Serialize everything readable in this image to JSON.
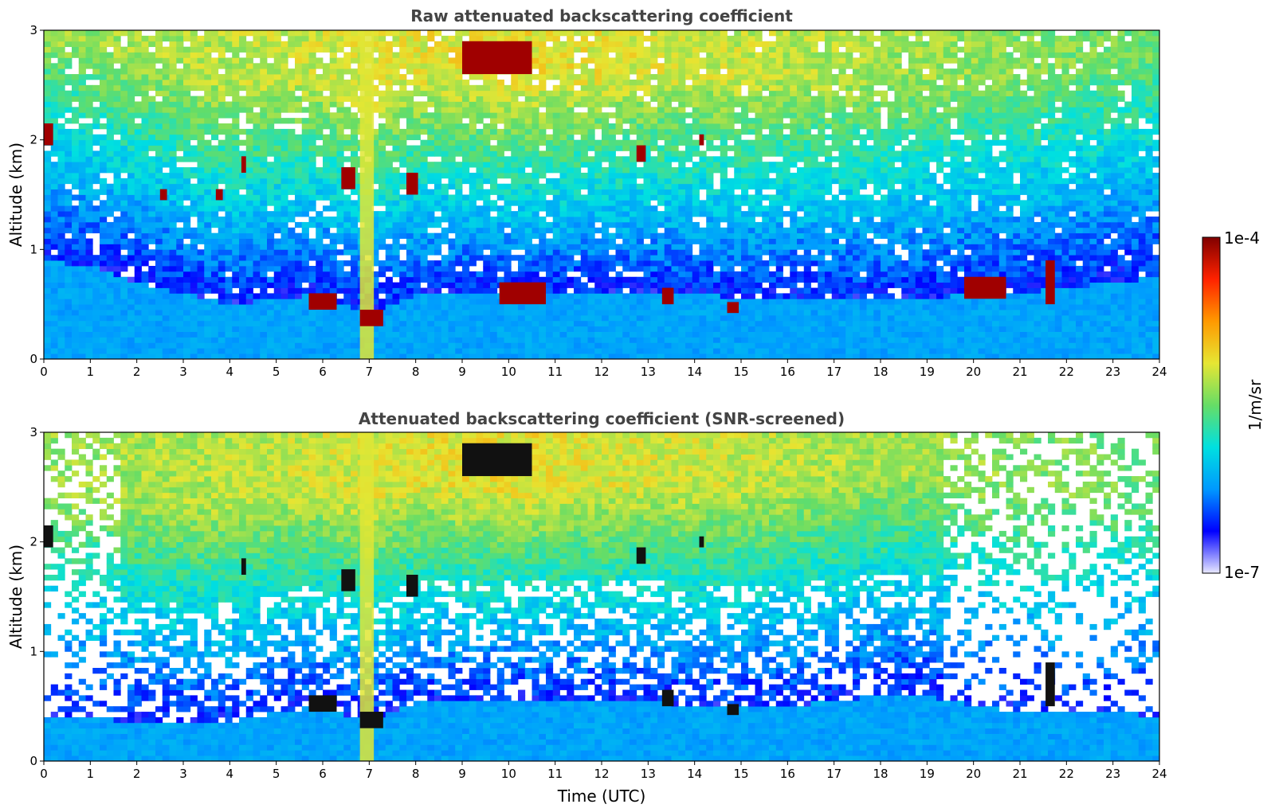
{
  "chart_data": [
    {
      "type": "heatmap",
      "title": "Raw attenuated backscattering coefficient",
      "xlabel": "",
      "ylabel": "Altitude (km)",
      "xlim": [
        0,
        24
      ],
      "ylim": [
        0,
        3
      ],
      "xticks": [
        "0",
        "1",
        "2",
        "3",
        "4",
        "5",
        "6",
        "7",
        "8",
        "9",
        "10",
        "11",
        "12",
        "13",
        "14",
        "15",
        "16",
        "17",
        "18",
        "19",
        "20",
        "21",
        "22",
        "23",
        "24"
      ],
      "yticks": [
        "0",
        "1",
        "2",
        "3"
      ],
      "grid": false,
      "colorscale": "jet (log)",
      "features": {
        "boundary_layer_top_km": [
          0.9,
          0.85,
          0.7,
          0.6,
          0.5,
          0.55,
          0.6,
          0.4,
          0.6,
          0.6,
          0.6,
          0.6,
          0.6,
          0.6,
          0.6,
          0.55,
          0.55,
          0.55,
          0.55,
          0.55,
          0.6,
          0.6,
          0.65,
          0.7,
          0.75
        ],
        "cloud_patches": [
          {
            "t_start": 0.0,
            "t_end": 0.2,
            "alt_low": 1.95,
            "alt_high": 2.15
          },
          {
            "t_start": 2.5,
            "t_end": 2.65,
            "alt_low": 1.45,
            "alt_high": 1.55
          },
          {
            "t_start": 3.7,
            "t_end": 3.85,
            "alt_low": 1.45,
            "alt_high": 1.55
          },
          {
            "t_start": 4.25,
            "t_end": 4.35,
            "alt_low": 1.7,
            "alt_high": 1.85
          },
          {
            "t_start": 5.7,
            "t_end": 6.3,
            "alt_low": 0.45,
            "alt_high": 0.6
          },
          {
            "t_start": 6.4,
            "t_end": 6.7,
            "alt_low": 1.55,
            "alt_high": 1.75
          },
          {
            "t_start": 6.8,
            "t_end": 7.3,
            "alt_low": 0.3,
            "alt_high": 0.45
          },
          {
            "t_start": 7.8,
            "t_end": 8.05,
            "alt_low": 1.5,
            "alt_high": 1.7
          },
          {
            "t_start": 9.0,
            "t_end": 10.5,
            "alt_low": 2.6,
            "alt_high": 2.9
          },
          {
            "t_start": 9.8,
            "t_end": 10.8,
            "alt_low": 0.5,
            "alt_high": 0.7
          },
          {
            "t_start": 12.75,
            "t_end": 12.95,
            "alt_low": 1.8,
            "alt_high": 1.95
          },
          {
            "t_start": 13.3,
            "t_end": 13.55,
            "alt_low": 0.5,
            "alt_high": 0.65
          },
          {
            "t_start": 14.1,
            "t_end": 14.2,
            "alt_low": 1.95,
            "alt_high": 2.05
          },
          {
            "t_start": 14.7,
            "t_end": 14.95,
            "alt_low": 0.42,
            "alt_high": 0.52
          },
          {
            "t_start": 19.8,
            "t_end": 20.7,
            "alt_low": 0.55,
            "alt_high": 0.75
          },
          {
            "t_start": 21.55,
            "t_end": 21.75,
            "alt_low": 0.5,
            "alt_high": 0.9
          }
        ],
        "dense_aerosol_column": {
          "t_start": 6.8,
          "t_end": 7.1,
          "alt_low": 0.0,
          "alt_high": 3.0
        }
      }
    },
    {
      "type": "heatmap",
      "title": "Attenuated backscattering coefficient (SNR-screened)",
      "xlabel": "Time (UTC)",
      "ylabel": "Altitude (km)",
      "xlim": [
        0,
        24
      ],
      "ylim": [
        0,
        3
      ],
      "xticks": [
        "0",
        "1",
        "2",
        "3",
        "4",
        "5",
        "6",
        "7",
        "8",
        "9",
        "10",
        "11",
        "12",
        "13",
        "14",
        "15",
        "16",
        "17",
        "18",
        "19",
        "20",
        "21",
        "22",
        "23",
        "24"
      ],
      "yticks": [
        "0",
        "1",
        "2",
        "3"
      ],
      "grid": false,
      "colorscale": "jet (log)",
      "features": {
        "screened_low_snr": true,
        "boundary_layer_top_km": [
          0.4,
          0.4,
          0.35,
          0.35,
          0.35,
          0.45,
          0.5,
          0.35,
          0.55,
          0.55,
          0.55,
          0.55,
          0.55,
          0.55,
          0.5,
          0.5,
          0.5,
          0.55,
          0.6,
          0.6,
          0.5,
          0.45,
          0.45,
          0.45,
          0.4
        ],
        "cloud_patches": [
          {
            "t_start": 0.0,
            "t_end": 0.2,
            "alt_low": 1.95,
            "alt_high": 2.15
          },
          {
            "t_start": 4.25,
            "t_end": 4.35,
            "alt_low": 1.7,
            "alt_high": 1.85
          },
          {
            "t_start": 5.7,
            "t_end": 6.3,
            "alt_low": 0.45,
            "alt_high": 0.6
          },
          {
            "t_start": 6.4,
            "t_end": 6.7,
            "alt_low": 1.55,
            "alt_high": 1.75
          },
          {
            "t_start": 6.8,
            "t_end": 7.3,
            "alt_low": 0.3,
            "alt_high": 0.45
          },
          {
            "t_start": 7.8,
            "t_end": 8.05,
            "alt_low": 1.5,
            "alt_high": 1.7
          },
          {
            "t_start": 9.0,
            "t_end": 10.5,
            "alt_low": 2.6,
            "alt_high": 2.9
          },
          {
            "t_start": 12.75,
            "t_end": 12.95,
            "alt_low": 1.8,
            "alt_high": 1.95
          },
          {
            "t_start": 13.3,
            "t_end": 13.55,
            "alt_low": 0.5,
            "alt_high": 0.65
          },
          {
            "t_start": 14.1,
            "t_end": 14.2,
            "alt_low": 1.95,
            "alt_high": 2.05
          },
          {
            "t_start": 14.7,
            "t_end": 14.95,
            "alt_low": 0.42,
            "alt_high": 0.52
          },
          {
            "t_start": 21.55,
            "t_end": 21.75,
            "alt_low": 0.5,
            "alt_high": 0.9
          }
        ],
        "dense_aerosol_column": {
          "t_start": 6.8,
          "t_end": 7.1,
          "alt_low": 0.0,
          "alt_high": 3.0
        }
      }
    }
  ],
  "colorbar": {
    "label": "1/m/sr",
    "max_label": "1e-4",
    "min_label": "1e-7",
    "scale": "log",
    "stops": [
      "#e8e8ff",
      "#0000ff",
      "#0099ff",
      "#00e0e0",
      "#66dd66",
      "#e6e633",
      "#ff9900",
      "#ff2200",
      "#800000"
    ]
  }
}
